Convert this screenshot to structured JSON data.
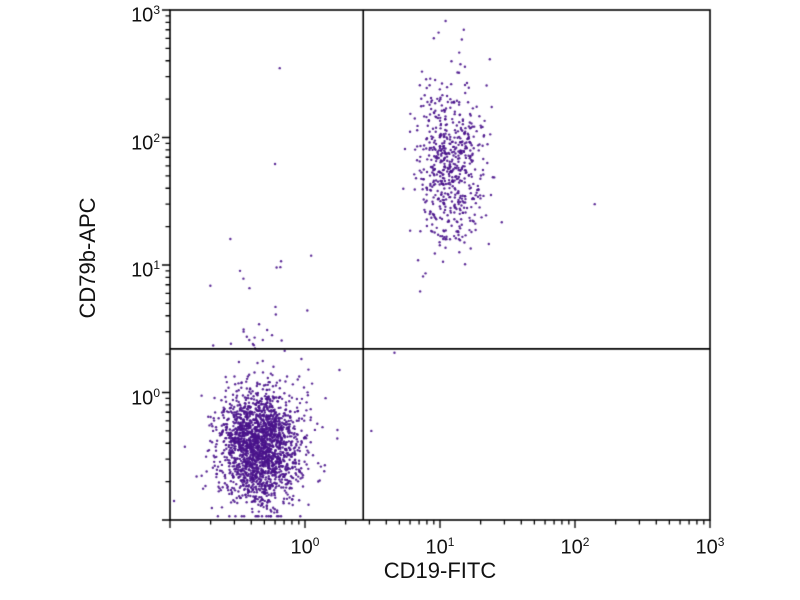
{
  "figure": {
    "background": "#ffffff",
    "frame_color": "#000000",
    "text_color": "#111111"
  },
  "chart_data": {
    "type": "scatter",
    "title": "",
    "xlabel": "CD19-FITC",
    "ylabel": "CD79b-APC",
    "xscale": "log",
    "yscale": "log",
    "xlim": [
      0.1,
      1000
    ],
    "ylim": [
      0.1,
      1000
    ],
    "grid": false,
    "legend": null,
    "x_ticks": [
      {
        "value": 1,
        "base": "10",
        "exp": "0"
      },
      {
        "value": 10,
        "base": "10",
        "exp": "1"
      },
      {
        "value": 100,
        "base": "10",
        "exp": "2"
      },
      {
        "value": 1000,
        "base": "10",
        "exp": "3"
      }
    ],
    "y_ticks": [
      {
        "value": 1,
        "base": "10",
        "exp": "0"
      },
      {
        "value": 10,
        "base": "10",
        "exp": "1"
      },
      {
        "value": 100,
        "base": "10",
        "exp": "2"
      },
      {
        "value": 1000,
        "base": "10",
        "exp": "3"
      }
    ],
    "quadrant_gates": {
      "x": 2.7,
      "y": 2.2
    },
    "point_color": "#4a148c",
    "point_radius": 1.2,
    "populations": [
      {
        "name": "CD19-negative CD79b-negative (lower-left)",
        "count": 2000,
        "center_x": 0.46,
        "center_y": 0.37,
        "log_sd_x": 0.15,
        "log_sd_y": 0.21
      },
      {
        "name": "lower-left halo / tail",
        "count": 110,
        "center_x": 0.5,
        "center_y": 0.75,
        "log_sd_x": 0.24,
        "log_sd_y": 0.4
      },
      {
        "name": "CD19-positive CD79b-positive (upper-right)",
        "count": 620,
        "center_x": 12,
        "center_y": 62,
        "log_sd_x": 0.13,
        "log_sd_y": 0.34
      },
      {
        "name": "upper-left sparse",
        "count": 12,
        "center_x": 0.5,
        "center_y": 3.6,
        "log_sd_x": 0.22,
        "log_sd_y": 0.18
      }
    ],
    "outlier_points": [
      [
        0.65,
        350
      ],
      [
        0.6,
        62
      ],
      [
        0.28,
        16
      ],
      [
        0.33,
        9
      ],
      [
        140,
        30
      ],
      [
        4.6,
        2.05
      ],
      [
        3.1,
        0.5
      ],
      [
        1.8,
        1.5
      ],
      [
        11,
        820
      ],
      [
        15,
        700
      ],
      [
        9,
        600
      ]
    ]
  }
}
